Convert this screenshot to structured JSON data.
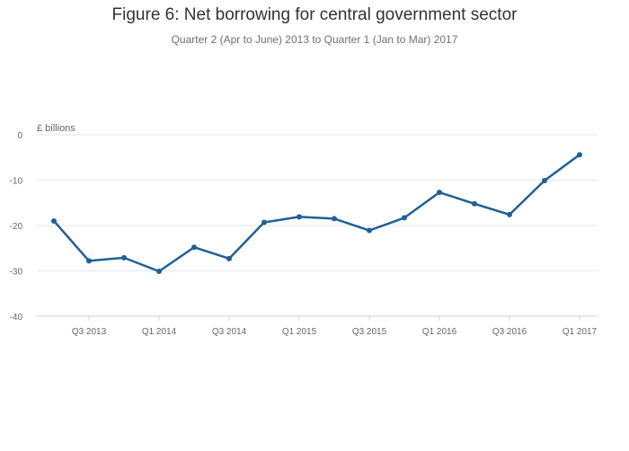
{
  "chart_data": {
    "type": "line",
    "title": "Figure 6: Net borrowing for central government sector",
    "subtitle": "Quarter 2 (Apr to June) 2013 to Quarter 1 (Jan to Mar) 2017",
    "y_unit_label": "£ billions",
    "ylim": [
      -40,
      0
    ],
    "y_ticks": [
      0,
      -10,
      -20,
      -30,
      -40
    ],
    "x": [
      "Q2 2013",
      "Q3 2013",
      "Q4 2013",
      "Q1 2014",
      "Q2 2014",
      "Q3 2014",
      "Q4 2014",
      "Q1 2015",
      "Q2 2015",
      "Q3 2015",
      "Q4 2015",
      "Q1 2016",
      "Q2 2016",
      "Q3 2016",
      "Q4 2016",
      "Q1 2017"
    ],
    "x_tick_labels": [
      "Q3 2013",
      "Q1 2014",
      "Q3 2014",
      "Q1 2015",
      "Q3 2015",
      "Q1 2016",
      "Q3 2016",
      "Q1 2017"
    ],
    "series": [
      {
        "values": [
          -19.0,
          -27.8,
          -27.1,
          -30.1,
          -24.8,
          -27.3,
          -19.3,
          -18.1,
          -18.5,
          -21.1,
          -18.3,
          -12.7,
          -15.2,
          -17.6,
          -10.1,
          -4.4
        ],
        "color": "#206095"
      }
    ],
    "grid": true,
    "legend": "none"
  }
}
